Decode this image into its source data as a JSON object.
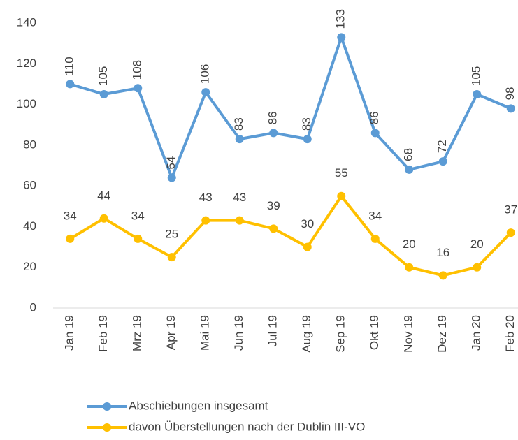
{
  "chart_data": {
    "type": "line",
    "categories": [
      "Jan 19",
      "Feb 19",
      "Mrz 19",
      "Apr 19",
      "Mai 19",
      "Jun 19",
      "Jul 19",
      "Aug 19",
      "Sep 19",
      "Okt 19",
      "Nov 19",
      "Dez 19",
      "Jan 20",
      "Feb 20"
    ],
    "series": [
      {
        "name": "Abschiebungen insgesamt",
        "color": "#5b9bd5",
        "values": [
          110,
          105,
          108,
          64,
          106,
          83,
          86,
          83,
          133,
          86,
          68,
          72,
          105,
          98
        ]
      },
      {
        "name": "davon Überstellungen nach der Dublin III-VO",
        "color": "#ffc000",
        "values": [
          34,
          44,
          34,
          25,
          43,
          43,
          39,
          30,
          55,
          34,
          20,
          16,
          20,
          37
        ]
      }
    ],
    "ylim": [
      0,
      140
    ],
    "yticks": [
      0,
      20,
      40,
      60,
      80,
      100,
      120,
      140
    ],
    "grid": false,
    "legend": "bottom"
  }
}
